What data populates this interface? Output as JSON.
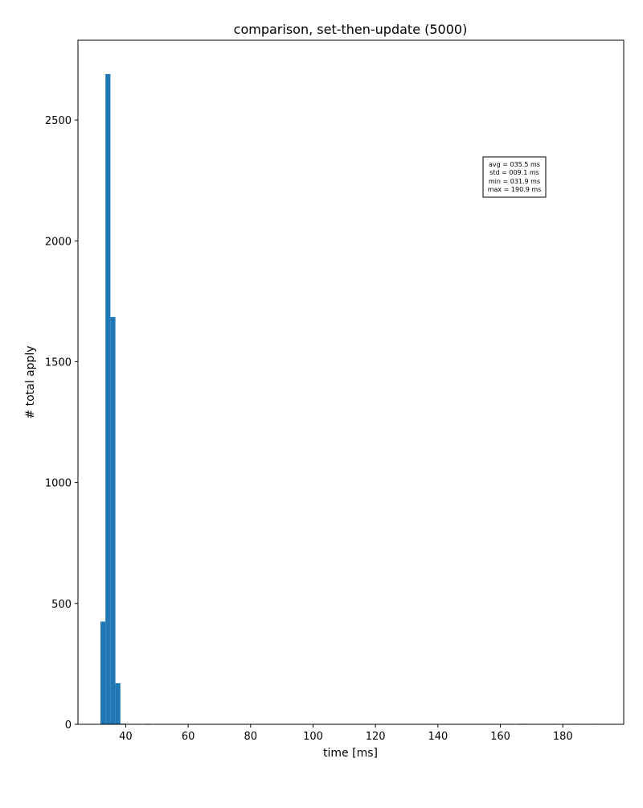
{
  "chart_data": {
    "type": "bar",
    "title": "comparison, set-then-update (5000)",
    "xlabel": "time [ms]",
    "ylabel": "# total apply",
    "xlim": [
      24.7,
      199.5
    ],
    "ylim": [
      0,
      2830
    ],
    "xticks": [
      40,
      60,
      80,
      100,
      120,
      140,
      160,
      180
    ],
    "yticks": [
      0,
      500,
      1000,
      1500,
      2000,
      2500
    ],
    "bar_color": "#1f77b4",
    "bin_width": 1.59,
    "bars": [
      {
        "x": 31.9,
        "value": 425
      },
      {
        "x": 33.5,
        "value": 2690
      },
      {
        "x": 35.1,
        "value": 1685
      },
      {
        "x": 36.7,
        "value": 170
      },
      {
        "x": 38.3,
        "value": 3
      },
      {
        "x": 46.3,
        "value": 2
      },
      {
        "x": 165.6,
        "value": 2
      },
      {
        "x": 167.2,
        "value": 2
      },
      {
        "x": 176.7,
        "value": 2
      },
      {
        "x": 183.1,
        "value": 2
      },
      {
        "x": 189.5,
        "value": 2
      }
    ],
    "stats_box": {
      "lines": [
        "avg = 035.5 ms",
        "std = 009.1 ms",
        "min = 031.9 ms",
        "max = 190.9 ms"
      ]
    }
  }
}
